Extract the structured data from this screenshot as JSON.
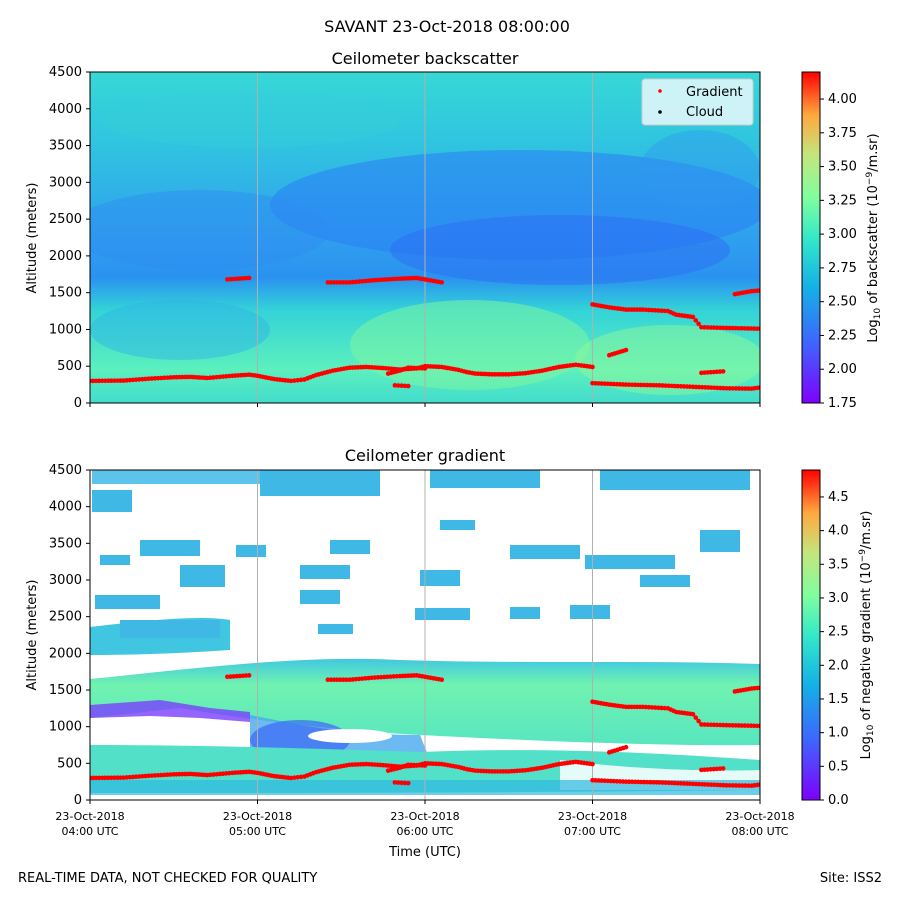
{
  "suptitle": "SAVANT 23-Oct-2018 08:00:00",
  "footer_left": "REAL-TIME DATA, NOT CHECKED FOR QUALITY",
  "footer_right": "Site: ISS2",
  "chart_data": [
    {
      "type": "heatmap",
      "title": "Ceilometer backscatter",
      "xlabel": "",
      "ylabel": "Altitude (meters)",
      "ylim": [
        0,
        4500
      ],
      "yticks": [
        0,
        500,
        1000,
        1500,
        2000,
        2500,
        3000,
        3500,
        4000,
        4500
      ],
      "xlim_hours_utc": [
        4,
        8
      ],
      "xgrid_hours_utc": [
        5,
        6,
        7
      ],
      "colorbar": {
        "label": "Log",
        "label_sub": "10",
        "label_rest": " of backscatter (10",
        "label_sup": "−9",
        "label_end": "/m.sr)",
        "range": [
          1.75,
          4.2
        ],
        "ticks": [
          "4.00",
          "3.75",
          "3.50",
          "3.25",
          "3.00",
          "2.75",
          "2.50",
          "2.25",
          "2.00",
          "1.75"
        ],
        "tick_values": [
          4.0,
          3.75,
          3.5,
          3.25,
          3.0,
          2.75,
          2.5,
          2.25,
          2.0,
          1.75
        ]
      },
      "legend": {
        "placement": "top-right",
        "entries": [
          {
            "label": "Gradient",
            "color": "#ff0000"
          },
          {
            "label": "Cloud",
            "color": "#000000"
          }
        ]
      }
    },
    {
      "type": "heatmap",
      "title": "Ceilometer gradient",
      "xlabel": "Time (UTC)",
      "ylabel": "Altitude (meters)",
      "ylim": [
        0,
        4500
      ],
      "yticks": [
        0,
        500,
        1000,
        1500,
        2000,
        2500,
        3000,
        3500,
        4000,
        4500
      ],
      "xlim_hours_utc": [
        4,
        8
      ],
      "xgrid_hours_utc": [
        5,
        6,
        7
      ],
      "xticks": [
        {
          "h": 4,
          "line1": "23-Oct-2018",
          "line2": "04:00 UTC"
        },
        {
          "h": 5,
          "line1": "23-Oct-2018",
          "line2": "05:00 UTC"
        },
        {
          "h": 6,
          "line1": "23-Oct-2018",
          "line2": "06:00 UTC"
        },
        {
          "h": 7,
          "line1": "23-Oct-2018",
          "line2": "07:00 UTC"
        },
        {
          "h": 8,
          "line1": "23-Oct-2018",
          "line2": "08:00 UTC"
        }
      ],
      "colorbar": {
        "label": "Log",
        "label_sub": "10",
        "label_rest": " of negative gradient (10",
        "label_sup": "−9",
        "label_end": "/m.sr)",
        "range": [
          0,
          4.9
        ],
        "ticks": [
          "4.5",
          "4.0",
          "3.5",
          "3.0",
          "2.5",
          "2.0",
          "1.5",
          "1.0",
          "0.5",
          "0.0"
        ],
        "tick_values": [
          4.5,
          4.0,
          3.5,
          3.0,
          2.5,
          2.0,
          1.5,
          1.0,
          0.5,
          0.0
        ]
      }
    }
  ],
  "gradient_series": [
    [
      [
        4.0,
        300
      ],
      [
        4.2,
        305
      ],
      [
        4.35,
        330
      ],
      [
        4.5,
        350
      ],
      [
        4.6,
        355
      ],
      [
        4.7,
        340
      ],
      [
        4.85,
        370
      ],
      [
        4.95,
        385
      ],
      [
        5.0,
        370
      ],
      [
        5.1,
        325
      ],
      [
        5.2,
        300
      ],
      [
        5.28,
        320
      ],
      [
        5.35,
        380
      ],
      [
        5.45,
        440
      ],
      [
        5.55,
        480
      ],
      [
        5.65,
        490
      ],
      [
        5.75,
        475
      ],
      [
        5.85,
        455
      ],
      [
        5.95,
        470
      ],
      [
        6.0,
        500
      ],
      [
        6.1,
        490
      ],
      [
        6.2,
        450
      ],
      [
        6.25,
        420
      ],
      [
        6.3,
        400
      ],
      [
        6.4,
        390
      ],
      [
        6.5,
        390
      ],
      [
        6.6,
        405
      ],
      [
        6.7,
        440
      ],
      [
        6.8,
        490
      ],
      [
        6.9,
        520
      ],
      [
        7.0,
        490
      ]
    ],
    [
      [
        5.78,
        400
      ],
      [
        5.85,
        440
      ],
      [
        5.9,
        480
      ],
      [
        6.0,
        470
      ]
    ],
    [
      [
        5.82,
        240
      ],
      [
        5.9,
        230
      ]
    ],
    [
      [
        4.82,
        1680
      ],
      [
        4.95,
        1700
      ]
    ],
    [
      [
        5.42,
        1640
      ],
      [
        5.55,
        1640
      ],
      [
        5.7,
        1670
      ],
      [
        5.85,
        1690
      ],
      [
        5.95,
        1700
      ],
      [
        6.05,
        1660
      ],
      [
        6.1,
        1640
      ]
    ],
    [
      [
        7.0,
        1340
      ],
      [
        7.1,
        1300
      ],
      [
        7.2,
        1270
      ],
      [
        7.3,
        1270
      ],
      [
        7.45,
        1250
      ],
      [
        7.5,
        1200
      ],
      [
        7.6,
        1170
      ],
      [
        7.65,
        1030
      ],
      [
        7.8,
        1020
      ],
      [
        8.0,
        1010
      ]
    ],
    [
      [
        7.85,
        1480
      ],
      [
        7.95,
        1520
      ],
      [
        8.0,
        1530
      ]
    ],
    [
      [
        7.1,
        650
      ],
      [
        7.2,
        720
      ]
    ],
    [
      [
        7.65,
        410
      ],
      [
        7.78,
        430
      ]
    ],
    [
      [
        7.0,
        270
      ],
      [
        7.2,
        250
      ],
      [
        7.4,
        240
      ],
      [
        7.6,
        220
      ],
      [
        7.8,
        200
      ],
      [
        7.95,
        195
      ],
      [
        8.0,
        210
      ]
    ]
  ]
}
